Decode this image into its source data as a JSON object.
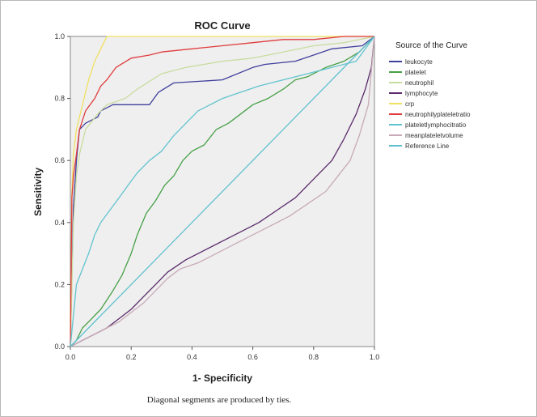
{
  "footnote": "Diagonal segments are produced by ties.",
  "chart_data": {
    "type": "line",
    "title": "ROC Curve",
    "xlabel": "1- Specificity",
    "ylabel": "Sensitivity",
    "xlim": [
      0,
      1
    ],
    "ylim": [
      0,
      1
    ],
    "xticks": [
      "0.0",
      "0.2",
      "0.4",
      "0.6",
      "0.8",
      "1.0"
    ],
    "yticks": [
      "0.0",
      "0.2",
      "0.4",
      "0.6",
      "0.8",
      "1.0"
    ],
    "grid": false,
    "legend_title": "Source of the Curve",
    "legend_position": "right",
    "series": [
      {
        "name": "leukocyte",
        "color": "#3f3f9c",
        "points": [
          [
            0,
            0
          ],
          [
            0.01,
            0.45
          ],
          [
            0.02,
            0.6
          ],
          [
            0.03,
            0.7
          ],
          [
            0.05,
            0.72
          ],
          [
            0.09,
            0.74
          ],
          [
            0.1,
            0.76
          ],
          [
            0.14,
            0.78
          ],
          [
            0.26,
            0.78
          ],
          [
            0.29,
            0.82
          ],
          [
            0.34,
            0.85
          ],
          [
            0.5,
            0.86
          ],
          [
            0.6,
            0.9
          ],
          [
            0.64,
            0.91
          ],
          [
            0.74,
            0.92
          ],
          [
            0.86,
            0.96
          ],
          [
            0.96,
            0.97
          ],
          [
            1,
            1
          ]
        ]
      },
      {
        "name": "platelet",
        "color": "#46a046",
        "points": [
          [
            0,
            0
          ],
          [
            0.02,
            0.02
          ],
          [
            0.04,
            0.06
          ],
          [
            0.06,
            0.08
          ],
          [
            0.1,
            0.12
          ],
          [
            0.14,
            0.18
          ],
          [
            0.17,
            0.23
          ],
          [
            0.2,
            0.3
          ],
          [
            0.22,
            0.36
          ],
          [
            0.25,
            0.43
          ],
          [
            0.28,
            0.47
          ],
          [
            0.31,
            0.52
          ],
          [
            0.34,
            0.55
          ],
          [
            0.37,
            0.6
          ],
          [
            0.4,
            0.63
          ],
          [
            0.44,
            0.65
          ],
          [
            0.48,
            0.7
          ],
          [
            0.52,
            0.72
          ],
          [
            0.56,
            0.75
          ],
          [
            0.6,
            0.78
          ],
          [
            0.65,
            0.8
          ],
          [
            0.7,
            0.83
          ],
          [
            0.74,
            0.86
          ],
          [
            0.78,
            0.87
          ],
          [
            0.84,
            0.9
          ],
          [
            0.9,
            0.92
          ],
          [
            0.95,
            0.95
          ],
          [
            1,
            1
          ]
        ]
      },
      {
        "name": "neutrophil",
        "color": "#c9dca0",
        "points": [
          [
            0,
            0
          ],
          [
            0.01,
            0.4
          ],
          [
            0.02,
            0.55
          ],
          [
            0.03,
            0.62
          ],
          [
            0.05,
            0.7
          ],
          [
            0.09,
            0.75
          ],
          [
            0.12,
            0.78
          ],
          [
            0.18,
            0.8
          ],
          [
            0.22,
            0.83
          ],
          [
            0.3,
            0.88
          ],
          [
            0.38,
            0.9
          ],
          [
            0.5,
            0.92
          ],
          [
            0.6,
            0.93
          ],
          [
            0.7,
            0.95
          ],
          [
            0.8,
            0.97
          ],
          [
            0.9,
            0.98
          ],
          [
            1,
            1
          ]
        ]
      },
      {
        "name": "lymphocyte",
        "color": "#5a2a6a",
        "points": [
          [
            0,
            0
          ],
          [
            0.04,
            0.02
          ],
          [
            0.08,
            0.04
          ],
          [
            0.12,
            0.06
          ],
          [
            0.16,
            0.09
          ],
          [
            0.2,
            0.12
          ],
          [
            0.24,
            0.16
          ],
          [
            0.28,
            0.2
          ],
          [
            0.32,
            0.24
          ],
          [
            0.38,
            0.28
          ],
          [
            0.44,
            0.31
          ],
          [
            0.5,
            0.34
          ],
          [
            0.56,
            0.37
          ],
          [
            0.62,
            0.4
          ],
          [
            0.68,
            0.44
          ],
          [
            0.74,
            0.48
          ],
          [
            0.8,
            0.54
          ],
          [
            0.86,
            0.6
          ],
          [
            0.9,
            0.67
          ],
          [
            0.94,
            0.75
          ],
          [
            0.97,
            0.83
          ],
          [
            0.99,
            0.9
          ],
          [
            1,
            1
          ]
        ]
      },
      {
        "name": "crp",
        "color": "#f0e060",
        "points": [
          [
            0,
            0
          ],
          [
            0.005,
            0.5
          ],
          [
            0.01,
            0.62
          ],
          [
            0.02,
            0.7
          ],
          [
            0.04,
            0.78
          ],
          [
            0.06,
            0.86
          ],
          [
            0.08,
            0.92
          ],
          [
            0.1,
            0.96
          ],
          [
            0.12,
            1
          ],
          [
            1,
            1
          ]
        ]
      },
      {
        "name": "neutrophilyplateletratio",
        "color": "#e03c3c",
        "points": [
          [
            0,
            0
          ],
          [
            0.005,
            0.48
          ],
          [
            0.01,
            0.55
          ],
          [
            0.02,
            0.62
          ],
          [
            0.03,
            0.7
          ],
          [
            0.05,
            0.76
          ],
          [
            0.08,
            0.8
          ],
          [
            0.1,
            0.84
          ],
          [
            0.12,
            0.86
          ],
          [
            0.15,
            0.9
          ],
          [
            0.2,
            0.93
          ],
          [
            0.26,
            0.94
          ],
          [
            0.3,
            0.95
          ],
          [
            0.4,
            0.96
          ],
          [
            0.5,
            0.97
          ],
          [
            0.6,
            0.98
          ],
          [
            0.7,
            0.99
          ],
          [
            0.8,
            0.99
          ],
          [
            0.9,
            1
          ],
          [
            1,
            1
          ]
        ]
      },
      {
        "name": "plateletlymphocitratio",
        "color": "#62c4cf",
        "points": [
          [
            0,
            0
          ],
          [
            0.01,
            0.1
          ],
          [
            0.02,
            0.2
          ],
          [
            0.04,
            0.25
          ],
          [
            0.06,
            0.3
          ],
          [
            0.08,
            0.36
          ],
          [
            0.1,
            0.4
          ],
          [
            0.13,
            0.44
          ],
          [
            0.16,
            0.48
          ],
          [
            0.19,
            0.52
          ],
          [
            0.22,
            0.56
          ],
          [
            0.26,
            0.6
          ],
          [
            0.3,
            0.63
          ],
          [
            0.34,
            0.68
          ],
          [
            0.38,
            0.72
          ],
          [
            0.42,
            0.76
          ],
          [
            0.46,
            0.78
          ],
          [
            0.5,
            0.8
          ],
          [
            0.56,
            0.82
          ],
          [
            0.62,
            0.84
          ],
          [
            0.7,
            0.86
          ],
          [
            0.78,
            0.88
          ],
          [
            0.86,
            0.9
          ],
          [
            0.94,
            0.92
          ],
          [
            1,
            1
          ]
        ]
      },
      {
        "name": "meanplateletvolume",
        "color": "#c8aab8",
        "points": [
          [
            0,
            0
          ],
          [
            0.04,
            0.02
          ],
          [
            0.08,
            0.04
          ],
          [
            0.12,
            0.06
          ],
          [
            0.16,
            0.08
          ],
          [
            0.2,
            0.11
          ],
          [
            0.24,
            0.14
          ],
          [
            0.28,
            0.18
          ],
          [
            0.32,
            0.22
          ],
          [
            0.36,
            0.25
          ],
          [
            0.42,
            0.27
          ],
          [
            0.48,
            0.3
          ],
          [
            0.54,
            0.33
          ],
          [
            0.6,
            0.36
          ],
          [
            0.66,
            0.39
          ],
          [
            0.72,
            0.42
          ],
          [
            0.78,
            0.46
          ],
          [
            0.84,
            0.5
          ],
          [
            0.88,
            0.55
          ],
          [
            0.92,
            0.6
          ],
          [
            0.95,
            0.68
          ],
          [
            0.98,
            0.78
          ],
          [
            1,
            1
          ]
        ]
      },
      {
        "name": "Reference Line",
        "color": "#5ec0cf",
        "points": [
          [
            0,
            0
          ],
          [
            1,
            1
          ]
        ]
      }
    ]
  }
}
